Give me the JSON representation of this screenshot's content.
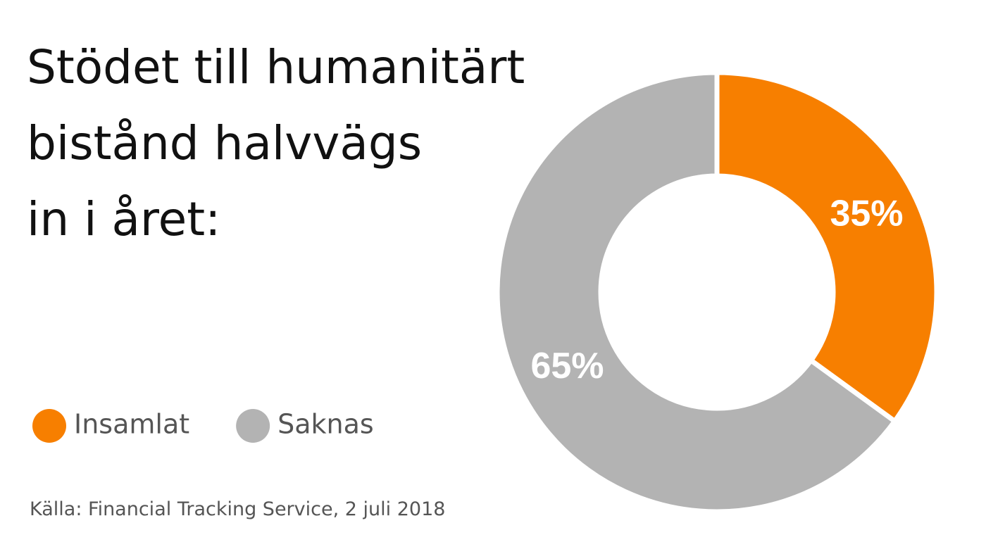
{
  "chart_data": {
    "type": "pie",
    "title": [
      "Stödet till humanitärt",
      "bistånd halvvägs",
      "in i året:"
    ],
    "categories": [
      "Insamlat",
      "Saknas"
    ],
    "values": [
      35,
      65
    ],
    "value_labels": [
      "35%",
      "65%"
    ],
    "colors": [
      "#f77f00",
      "#b3b3b3"
    ],
    "source": "Källa: Financial Tracking Service, 2 juli 2018"
  }
}
